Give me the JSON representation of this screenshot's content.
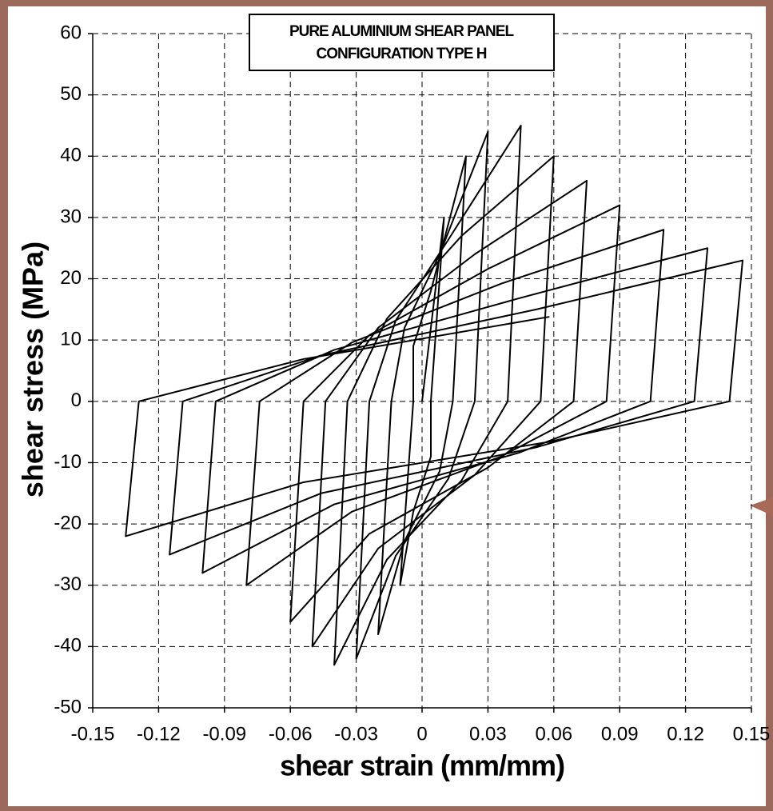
{
  "chart_data": {
    "type": "line",
    "title": "PURE ALUMINIUM SHEAR PANEL",
    "subtitle": "CONFIGURATION TYPE H",
    "x_label": "shear strain (mm/mm)",
    "y_label": "shear stress (MPa)",
    "color": "#000000",
    "grid": true,
    "xlim": [
      -0.15,
      0.15
    ],
    "xticks": [
      -0.15,
      -0.12,
      -0.09,
      -0.06,
      -0.03,
      0,
      0.03,
      0.06,
      0.09,
      0.12,
      0.15
    ],
    "ylim": [
      -50,
      60
    ],
    "yticks": [
      60,
      50,
      40,
      30,
      20,
      10,
      0,
      -10,
      -20,
      -30,
      -40,
      -50
    ],
    "x": [
      0,
      0.01,
      0.004,
      0.004,
      -0.004,
      -0.01,
      -0.004,
      -0.004,
      0.004,
      0.02,
      0.014,
      0.008,
      -0.008,
      -0.02,
      -0.014,
      -0.008,
      0.008,
      0.03,
      0.024,
      0.012,
      -0.012,
      -0.03,
      -0.024,
      -0.012,
      0.012,
      0.045,
      0.039,
      0.018,
      -0.016,
      -0.04,
      -0.034,
      -0.016,
      0.018,
      0.06,
      0.054,
      0.024,
      -0.02,
      -0.05,
      -0.044,
      -0.02,
      0.024,
      0.075,
      0.069,
      0.03,
      -0.024,
      -0.06,
      -0.054,
      -0.024,
      0.03,
      0.09,
      0.084,
      0.036,
      -0.032,
      -0.08,
      -0.074,
      -0.032,
      0.036,
      0.11,
      0.104,
      0.044,
      -0.04,
      -0.1,
      -0.094,
      -0.04,
      0.044,
      0.13,
      0.124,
      0.052,
      -0.046,
      -0.115,
      -0.109,
      -0.046,
      0.052,
      0.146,
      0.14,
      0.058,
      -0.054,
      -0.135,
      -0.129,
      -0.054,
      0.058
    ],
    "values": [
      0,
      30,
      0,
      -9,
      -18,
      -30,
      0,
      9,
      18,
      40,
      0,
      -11.4,
      -22.8,
      -38,
      0,
      12,
      24,
      44,
      0,
      -12.6,
      -25.2,
      -42,
      0,
      13.2,
      26.4,
      45,
      0,
      -12.9,
      -25.8,
      -43,
      0,
      13.5,
      27,
      40,
      0,
      -12,
      -24,
      -40,
      0,
      12,
      24,
      36,
      0,
      -10.8,
      -21.6,
      -36,
      0,
      10.8,
      21.6,
      32,
      0,
      -9,
      -18,
      -30,
      0,
      9.6,
      19.2,
      28,
      0,
      -8.4,
      -16.8,
      -28,
      0,
      8.4,
      16.8,
      25,
      0,
      -7.5,
      -15,
      -25,
      0,
      7.5,
      15,
      23,
      0,
      -6.6,
      -13.2,
      -22,
      0,
      6.9,
      13.8
    ]
  }
}
